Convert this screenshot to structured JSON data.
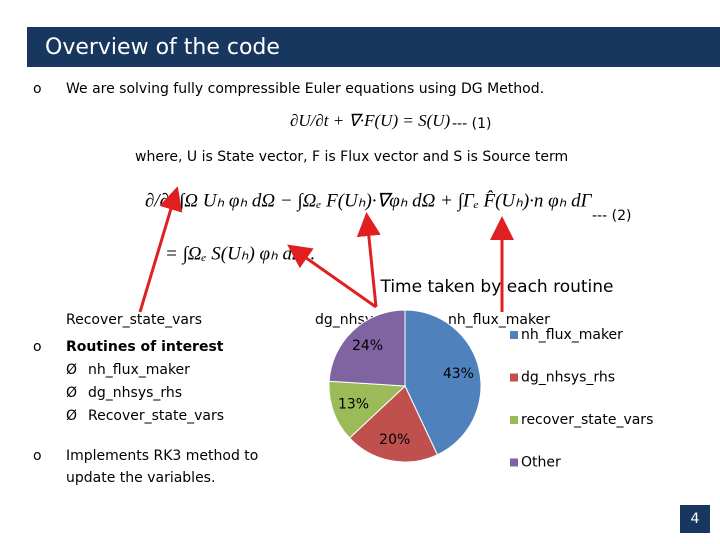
{
  "header": {
    "title": "Overview of the code"
  },
  "body": {
    "bullet_1": "We are solving fully compressible Euler equations using DG Method.",
    "equation_1": "∂U/∂t + ∇·F(U) = S(U)",
    "equation_1_number": "--- (1)",
    "where": "where, U is State vector, F is Flux vector and S is Source term",
    "equation_2a": "∂/∂t ∫Ω Uₕ φₕ dΩ − ∫Ωₑ F(Uₕ)·∇φₕ dΩ + ∫Γₑ F̂(Uₕ)·n φₕ dΓ",
    "equation_2_number": "--- (2)",
    "equation_2b": "= ∫Ωₑ S(Uₕ) φₕ dΩ .",
    "arrow_label": "Recover_state_vars",
    "bullet_2": "Routines of interest",
    "routines": [
      "nh_flux_maker",
      "dg_nhsys_rhs",
      "Recover_state_vars"
    ],
    "bullet_3": [
      "Implements RK3 method to",
      "update the variables."
    ]
  },
  "chart_data": {
    "type": "pie",
    "title": "Time taken by each routine",
    "categories": [
      "nh_flux_maker",
      "dg_nhsys_rhs",
      "recover_state_vars",
      "Other"
    ],
    "values": [
      43,
      20,
      13,
      24
    ],
    "value_labels": [
      "43%",
      "20%",
      "13%",
      "24%"
    ],
    "colors": [
      "#4f81bd",
      "#c0504d",
      "#9bbb59",
      "#8064a2"
    ],
    "annotations": [
      "dg_nhsys_rhs",
      "nh_flux_maker"
    ]
  },
  "footer": {
    "page": "4"
  }
}
